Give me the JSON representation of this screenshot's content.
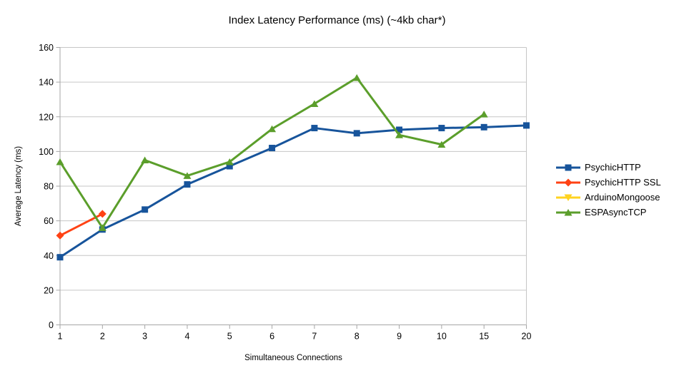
{
  "title": "Index Latency Performance (ms) (~4kb char*)",
  "chart_data": {
    "type": "line",
    "title": "Index Latency Performance (ms) (~4kb char*)",
    "xlabel": "Simultaneous Connections",
    "ylabel": "Average Latency (ms)",
    "categories": [
      "1",
      "2",
      "3",
      "4",
      "5",
      "6",
      "7",
      "8",
      "9",
      "10",
      "15",
      "20"
    ],
    "yticks": [
      0,
      20,
      40,
      60,
      80,
      100,
      120,
      140,
      160
    ],
    "ylim": [
      0,
      160
    ],
    "grid": "horizontal",
    "legend_position": "right",
    "colors": {
      "gridline": "#c6c6c6",
      "axis": "#a6a6a6",
      "background": "#ffffff"
    },
    "series": [
      {
        "name": "PsychicHTTP",
        "color": "#17549b",
        "marker": "square",
        "values": [
          39,
          55,
          66.5,
          81,
          91.5,
          102,
          113.5,
          110.5,
          112.5,
          113.5,
          114,
          115
        ]
      },
      {
        "name": "PsychicHTTP SSL",
        "color": "#ff4214",
        "marker": "diamond",
        "values": [
          51.5,
          64,
          null,
          null,
          null,
          null,
          null,
          null,
          null,
          null,
          null,
          null
        ]
      },
      {
        "name": "ArduinoMongoose",
        "color": "#ffd320",
        "marker": "triangle-down",
        "values": [
          null,
          null,
          null,
          null,
          null,
          null,
          null,
          null,
          null,
          null,
          null,
          null
        ]
      },
      {
        "name": "ESPAsyncTCP",
        "color": "#5b9e2b",
        "marker": "triangle-up",
        "values": [
          94,
          56,
          95,
          86,
          94,
          113,
          127.5,
          142.5,
          109.5,
          104,
          121.5,
          null
        ]
      }
    ]
  }
}
